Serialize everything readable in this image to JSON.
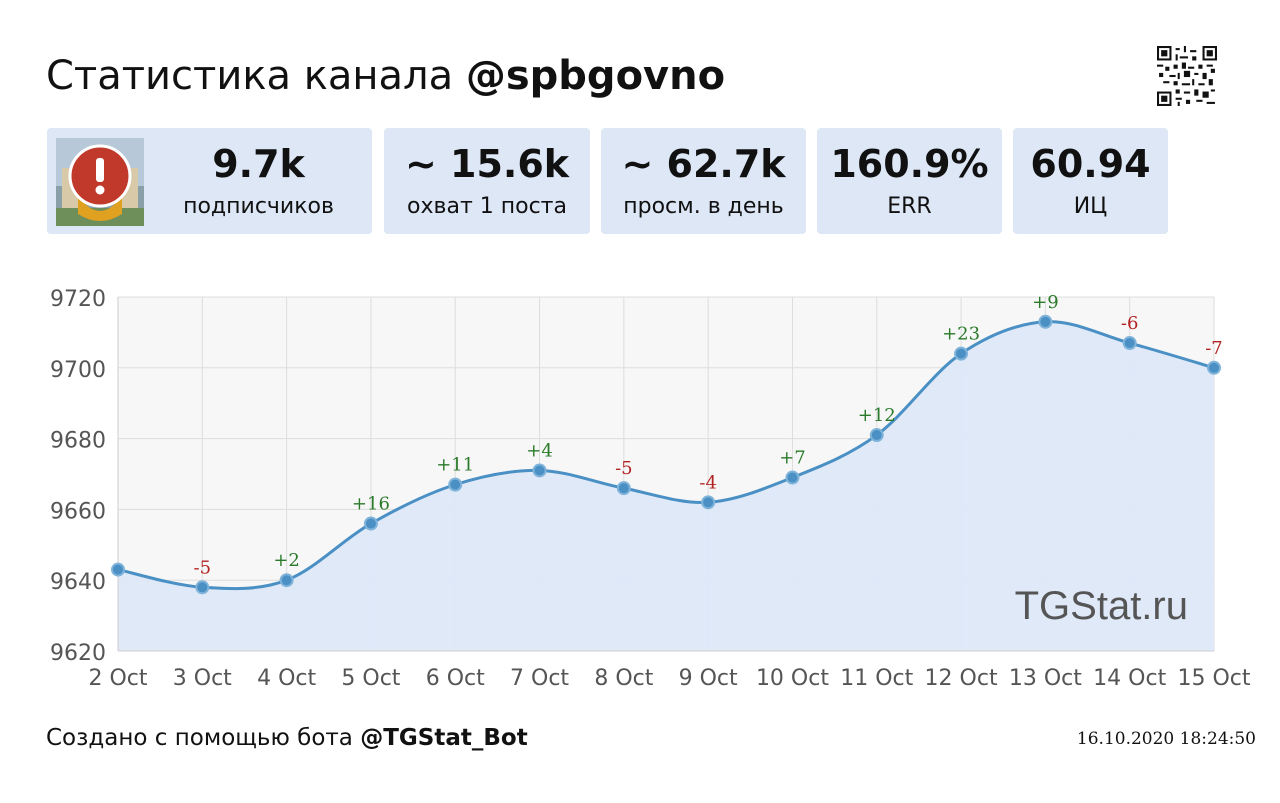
{
  "header": {
    "title_prefix": "Статистика канала",
    "channel_handle": "@spbgovno",
    "qr_icon": "qr-code-icon"
  },
  "stats": [
    {
      "value": "9.7k",
      "label": "подписчиков"
    },
    {
      "value": "~ 15.6k",
      "label": "охват 1 поста"
    },
    {
      "value": "~ 62.7k",
      "label": "просм. в день"
    },
    {
      "value": "160.9%",
      "label": "ERR"
    },
    {
      "value": "60.94",
      "label": "ИЦ"
    }
  ],
  "chart_data": {
    "type": "area",
    "x": [
      "2 Oct",
      "3 Oct",
      "4 Oct",
      "5 Oct",
      "6 Oct",
      "7 Oct",
      "8 Oct",
      "9 Oct",
      "10 Oct",
      "11 Oct",
      "12 Oct",
      "13 Oct",
      "14 Oct",
      "15 Oct"
    ],
    "values": [
      9643,
      9638,
      9640,
      9656,
      9667,
      9671,
      9666,
      9662,
      9669,
      9681,
      9704,
      9713,
      9707,
      9700
    ],
    "deltas": [
      "",
      "-5",
      "+2",
      "+16",
      "+11",
      "+4",
      "-5",
      "-4",
      "+7",
      "+12",
      "+23",
      "+9",
      "-6",
      "-7"
    ],
    "ylim": [
      9620,
      9720
    ],
    "yticks": [
      9620,
      9640,
      9660,
      9680,
      9700,
      9720
    ],
    "grid": true,
    "watermark": "TGStat.ru",
    "colors": {
      "line": "#4a90c4",
      "fill": "#dde8f8",
      "positive": "#2a7a2a",
      "negative": "#b22222"
    }
  },
  "footer": {
    "created_text": "Создано с помощью бота",
    "bot_handle": "@TGStat_Bot",
    "timestamp": "16.10.2020 18:24:50"
  }
}
